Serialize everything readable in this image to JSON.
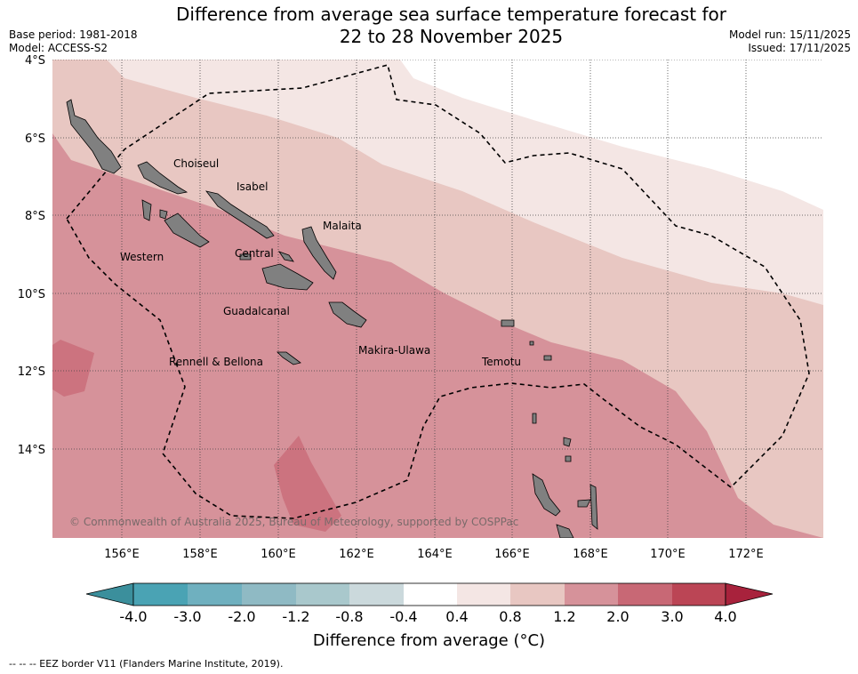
{
  "title_line1": "Difference from average sea surface temperature forecast for",
  "title_line2": "22 to 28 November 2025",
  "base_period": "Base period: 1981-2018",
  "model": "Model: ACCESS-S2",
  "model_run": "Model run: 15/11/2025",
  "issued": "Issued: 17/11/2025",
  "lat_labels": [
    "4°S",
    "6°S",
    "8°S",
    "10°S",
    "12°S",
    "14°S"
  ],
  "lon_labels": [
    "156°E",
    "158°E",
    "160°E",
    "162°E",
    "164°E",
    "166°E",
    "168°E",
    "170°E",
    "172°E"
  ],
  "island_labels": [
    "Choiseul",
    "Isabel",
    "Malaita",
    "Western",
    "Central",
    "Guadalcanal",
    "Makira-Ulawa",
    "Rennell & Bellona",
    "Temotu"
  ],
  "copyright": "© Commonwealth of Australia 2025, Bureau of Meteorology, supported by COSPPac",
  "colorbar_ticks": [
    "-4.0",
    "-3.0",
    "-2.0",
    "-1.2",
    "-0.8",
    "-0.4",
    "0.4",
    "0.8",
    "1.2",
    "2.0",
    "3.0",
    "4.0"
  ],
  "colorbar_title": "Difference from average (°C)",
  "footnote": "-- -- -- EEZ border V11 (Flanders Marine Institute, 2019).",
  "colors": {
    "c_neg4": "#3b8f9c",
    "c_neg3": "#4aa3b4",
    "c_neg2": "#6fb0bf",
    "c_neg12": "#8fbac4",
    "c_neg08": "#a9c8cc",
    "c_neg04": "#cbd9dc",
    "c_zero": "#ffffff",
    "c_04": "#f4e6e4",
    "c_08": "#e8c7c2",
    "c_12": "#d6929a",
    "c_20": "#c86875",
    "c_30": "#bb4555",
    "c_40": "#a8223c",
    "land": "#808080"
  }
}
